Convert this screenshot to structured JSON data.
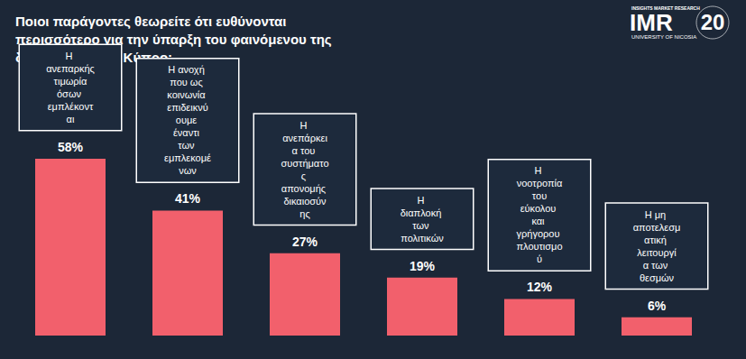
{
  "chart_data": {
    "type": "bar",
    "title": "Ποιοι παράγοντες θεωρείτε ότι ευθύνονται περισσότερο για την ύπαρξη του φαινόμενου της διαφθοράς στην Κύπρο;",
    "categories": [
      "Η ανεπαρκής τιμωρία όσων εμπλέκονται",
      "Η ανοχή που ως κοινωνία επιδεικνύουμε έναντι των εμπλεκομένων",
      "Η ανεπάρκεια του συστήματος απονομής δικαιοσύνης",
      "Η διαπλοκή των πολιτικών",
      "Η νοοτροπία του εύκολου και γρήγορου πλουτισμού",
      "Η μη αποτελεσματική λειτουργία των θεσμών"
    ],
    "values": [
      58,
      41,
      27,
      19,
      12,
      6
    ],
    "value_labels": [
      "58%",
      "41%",
      "27%",
      "19%",
      "12%",
      "6%"
    ],
    "color": "#f2606c",
    "ylim": [
      0,
      100
    ],
    "yticks": [
      0,
      100
    ],
    "grid": false,
    "tick_labels": false,
    "data_labels": true,
    "annotations": [
      "INSIGHTS MARKET RESEARCH",
      "IMR",
      "UNIVERSITY OF NICOSIA",
      "20"
    ]
  }
}
